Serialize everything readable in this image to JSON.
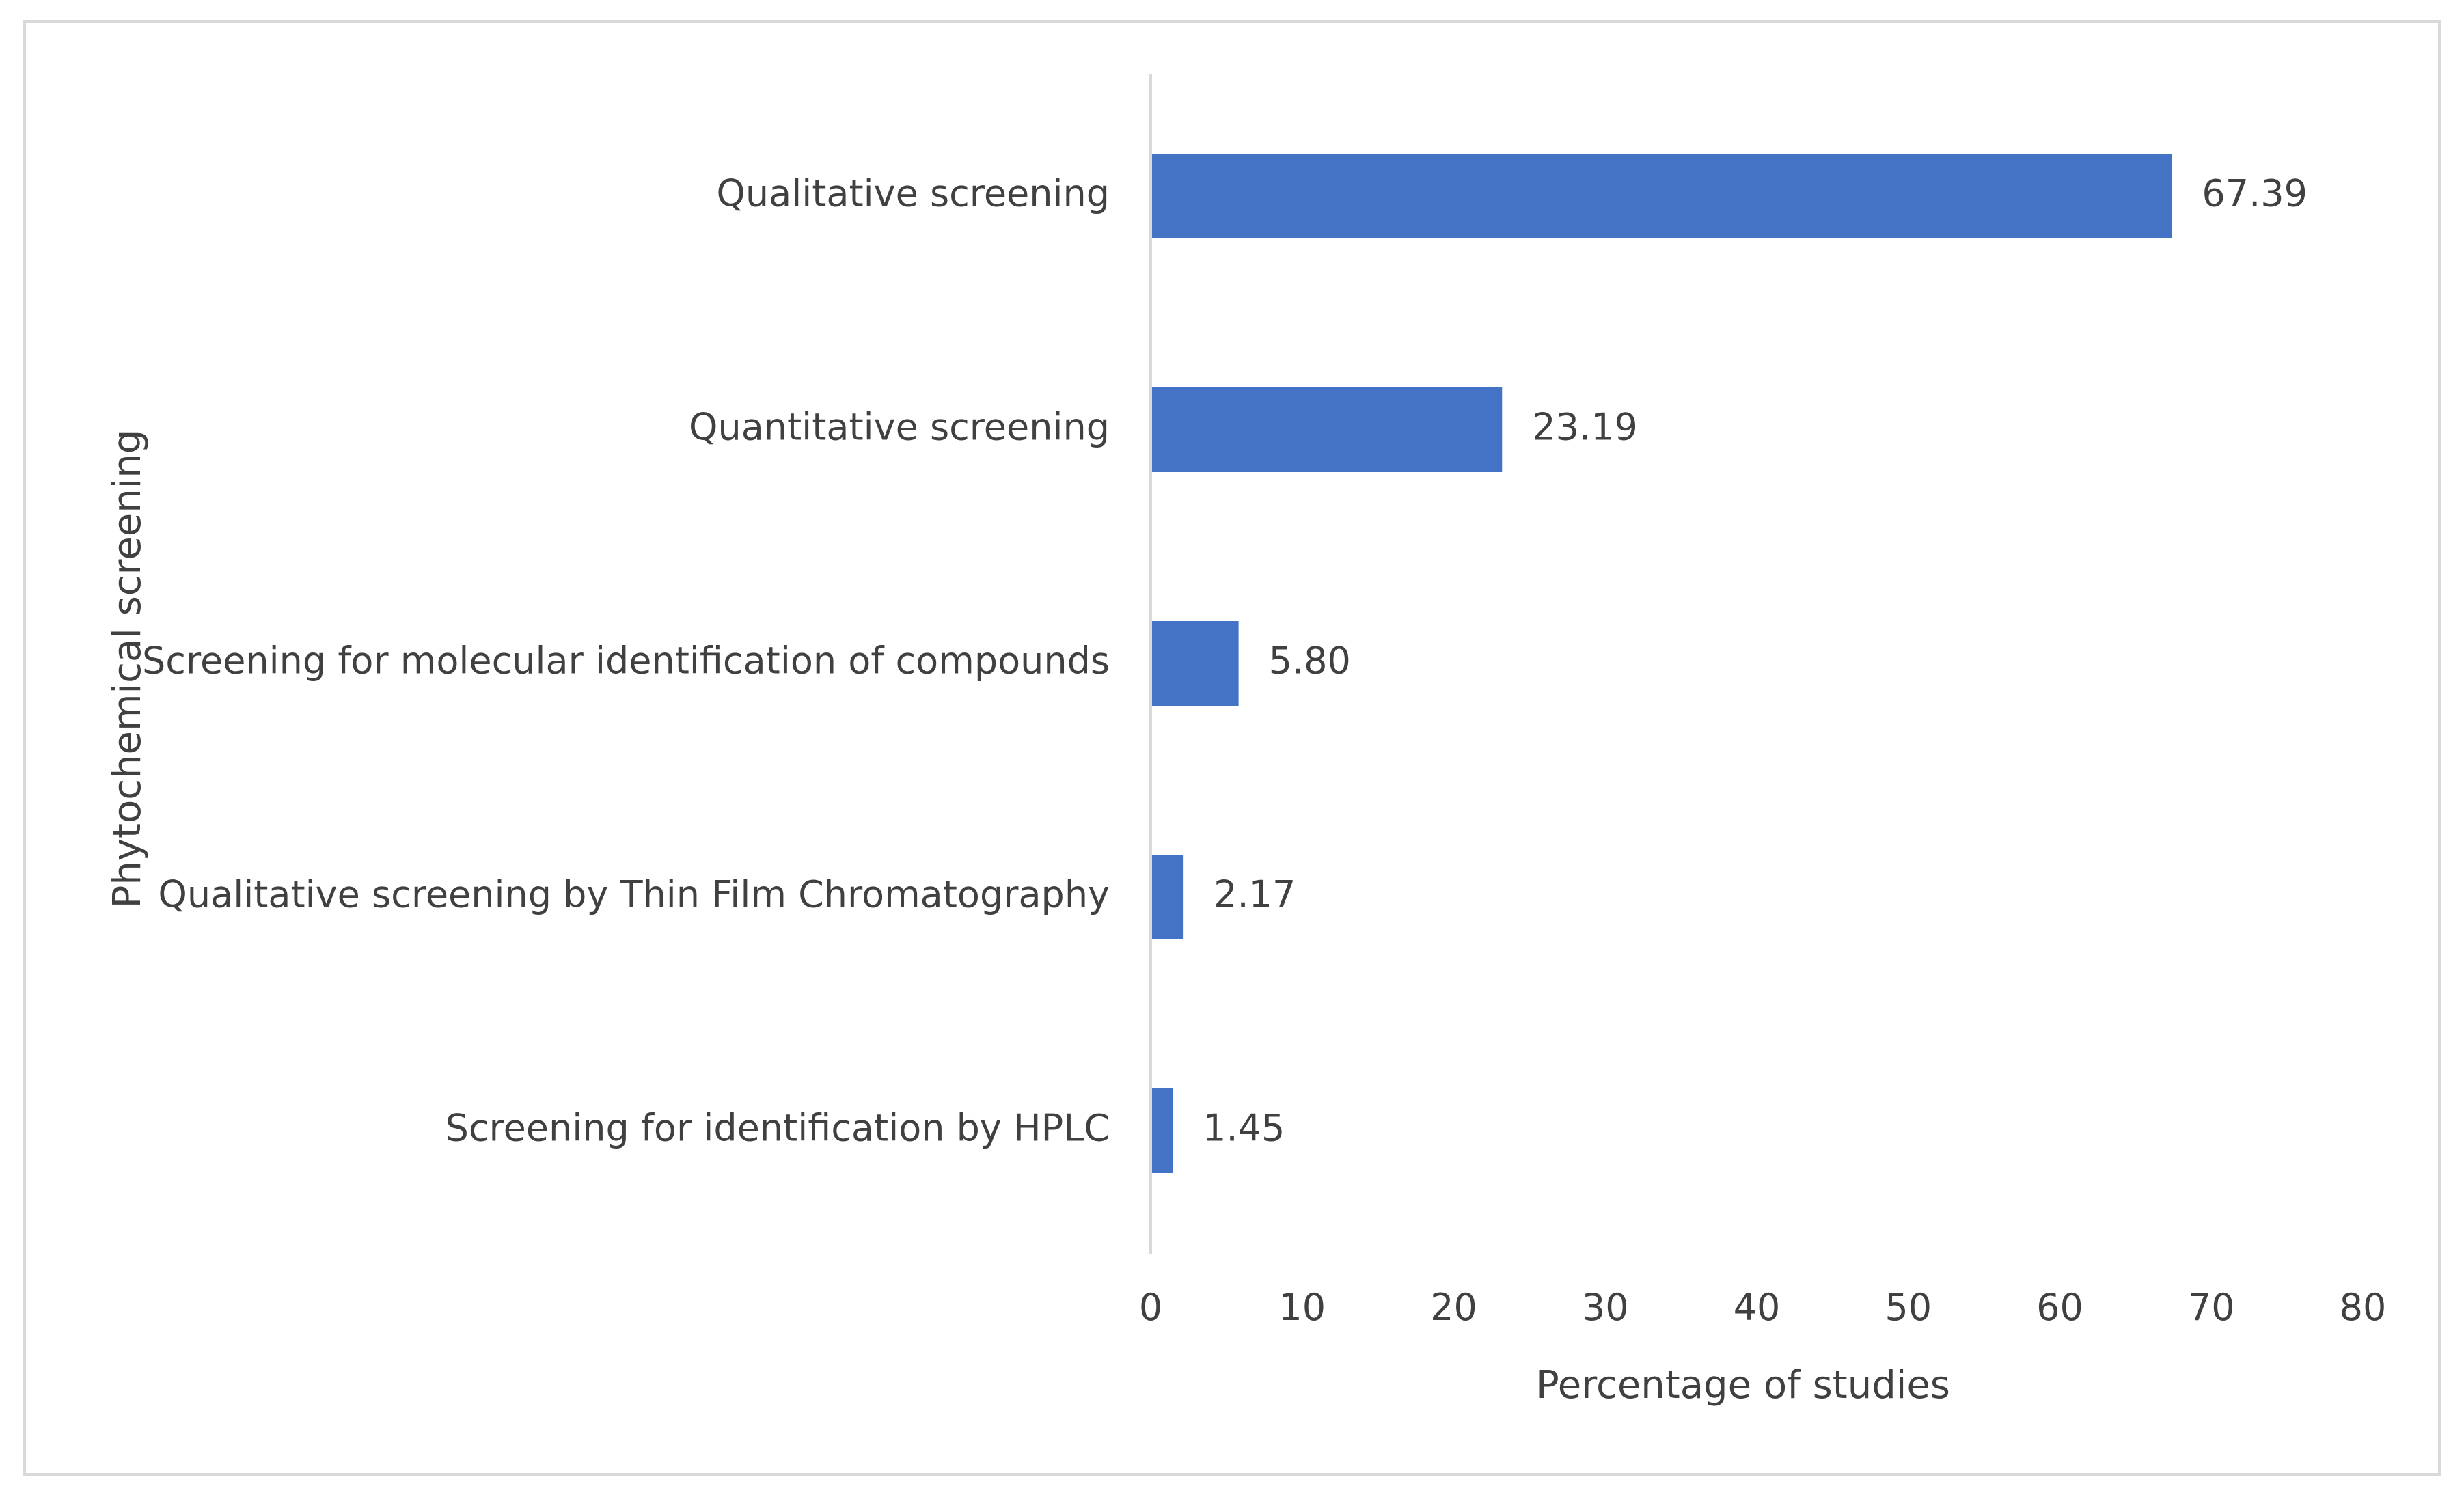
{
  "chart_data": {
    "type": "bar",
    "orientation": "horizontal",
    "categories": [
      "Qualitative screening",
      "Quantitative screening",
      "Screening for molecular identification of compounds",
      "Qualitative screening by Thin Film Chromatography",
      "Screening for identification by HPLC"
    ],
    "values": [
      67.39,
      23.19,
      5.8,
      2.17,
      1.45
    ],
    "data_labels": [
      "67.39",
      "23.19",
      "5.80",
      "2.17",
      "1.45"
    ],
    "xlabel": "Percentage of studies",
    "ylabel": "Phytochemical screening",
    "xlim": [
      0,
      80
    ],
    "xticks": [
      0,
      10,
      20,
      30,
      40,
      50,
      60,
      70,
      80
    ],
    "grid": false,
    "legend": "none",
    "bar_color": "#4472C4",
    "axis_color": "#d9d9d9",
    "text_color": "#404040"
  }
}
